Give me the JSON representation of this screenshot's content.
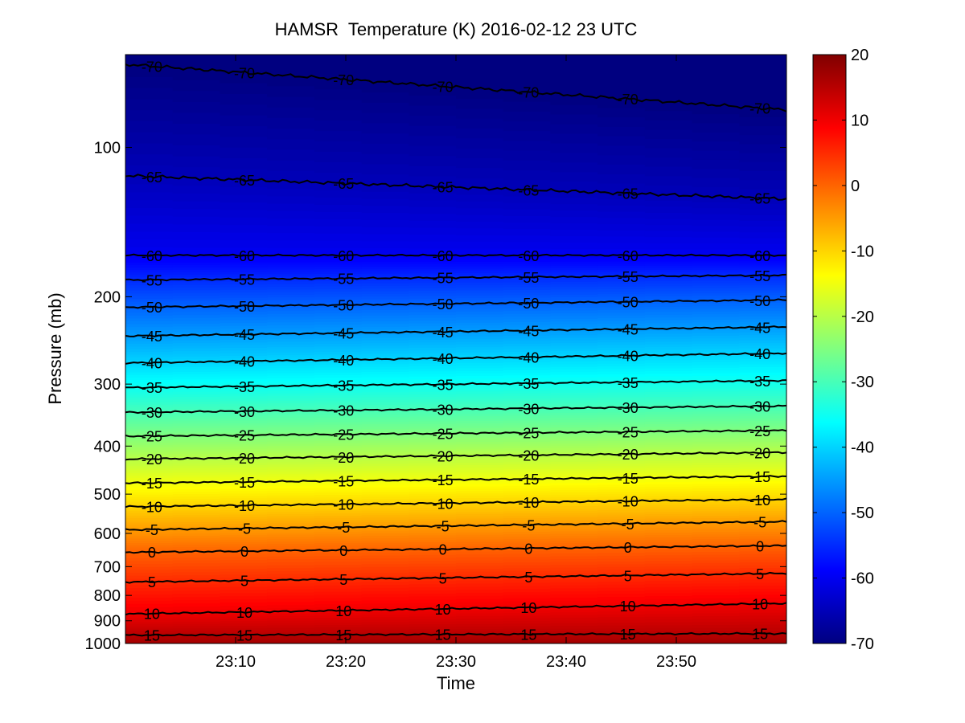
{
  "chart_data": {
    "type": "heatmap",
    "title": "HAMSR  Temperature (K) 2016-02-12 23 UTC",
    "xlabel": "Time",
    "ylabel": "Pressure (mb)",
    "x_range": [
      "23:00",
      "24:00"
    ],
    "x_ticks": [
      "23:10",
      "23:20",
      "23:30",
      "23:40",
      "23:50"
    ],
    "y_scale": "log",
    "y_reversed": true,
    "y_range": [
      65,
      1000
    ],
    "y_ticks": [
      100,
      200,
      300,
      400,
      500,
      600,
      700,
      800,
      900,
      1000
    ],
    "colormap": "jet",
    "colorbar": {
      "range": [
        -70,
        20
      ],
      "ticks": [
        20,
        10,
        0,
        -10,
        -20,
        -30,
        -40,
        -50,
        -60,
        -70
      ]
    },
    "contour_levels": [
      -70,
      -65,
      -60,
      -55,
      -50,
      -45,
      -40,
      -35,
      -30,
      -25,
      -20,
      -15,
      -10,
      -5,
      0,
      5,
      10,
      15
    ],
    "contours": [
      {
        "level": -70,
        "pressure_start": 68,
        "pressure_end": 84,
        "labels": [
          "-70",
          "-70",
          "-70",
          "-70",
          "-70",
          "-70",
          "-70"
        ]
      },
      {
        "level": -65,
        "pressure_start": 114,
        "pressure_end": 127,
        "labels": [
          "-65",
          "-65",
          "-65",
          "-65",
          "-65",
          "-65",
          "-65"
        ]
      },
      {
        "level": -60,
        "pressure_start": 165,
        "pressure_end": 165,
        "labels": [
          "-60",
          "-60",
          "-60",
          "-60",
          "-60",
          "-60",
          "-60"
        ]
      },
      {
        "level": -55,
        "pressure_start": 185,
        "pressure_end": 181,
        "labels": [
          "-55",
          "-55",
          "-55",
          "-55",
          "-55",
          "-55",
          "-55"
        ]
      },
      {
        "level": -50,
        "pressure_start": 210,
        "pressure_end": 203,
        "labels": [
          "-50",
          "-50",
          "-50",
          "-50",
          "-50",
          "-50",
          "-50"
        ]
      },
      {
        "level": -45,
        "pressure_start": 240,
        "pressure_end": 230,
        "labels": [
          "-45",
          "-45",
          "-45",
          "-45",
          "-45",
          "-45",
          "-45"
        ]
      },
      {
        "level": -40,
        "pressure_start": 272,
        "pressure_end": 260,
        "labels": [
          "-40",
          "-40",
          "-40",
          "-40",
          "-40",
          "-40",
          "-40"
        ]
      },
      {
        "level": -35,
        "pressure_start": 305,
        "pressure_end": 295,
        "labels": [
          "-35",
          "-35",
          "-35",
          "-35",
          "-35",
          "-35",
          "-35"
        ]
      },
      {
        "level": -30,
        "pressure_start": 342,
        "pressure_end": 332,
        "labels": [
          "-30",
          "-30",
          "-30",
          "-30",
          "-30",
          "-30",
          "-30"
        ]
      },
      {
        "level": -25,
        "pressure_start": 382,
        "pressure_end": 372,
        "labels": [
          "-25",
          "-25",
          "-25",
          "-25",
          "-25",
          "-25",
          "-25"
        ]
      },
      {
        "level": -20,
        "pressure_start": 425,
        "pressure_end": 412,
        "labels": [
          "-20",
          "-20",
          "-20",
          "-20",
          "-20",
          "-20",
          "-20"
        ]
      },
      {
        "level": -15,
        "pressure_start": 475,
        "pressure_end": 460,
        "labels": [
          "-15",
          "-15",
          "-15",
          "-15",
          "-15",
          "-15",
          "-15"
        ]
      },
      {
        "level": -10,
        "pressure_start": 530,
        "pressure_end": 512,
        "labels": [
          "-10",
          "-10",
          "-10",
          "-10",
          "-10",
          "-10",
          "-10"
        ]
      },
      {
        "level": -5,
        "pressure_start": 590,
        "pressure_end": 568,
        "labels": [
          "-5",
          "-5",
          "-5",
          "-5",
          "-5",
          "-5",
          "-5"
        ]
      },
      {
        "level": 0,
        "pressure_start": 655,
        "pressure_end": 635,
        "labels": [
          "0",
          "0",
          "0",
          "0",
          "0",
          "0",
          "0"
        ]
      },
      {
        "level": 5,
        "pressure_start": 752,
        "pressure_end": 722,
        "labels": [
          "5",
          "5",
          "5",
          "5",
          "5",
          "5",
          "5"
        ]
      },
      {
        "level": 10,
        "pressure_start": 872,
        "pressure_end": 830,
        "labels": [
          "10",
          "10",
          "10",
          "10",
          "10",
          "10",
          "10"
        ]
      },
      {
        "level": 15,
        "pressure_start": 962,
        "pressure_end": 955,
        "labels": [
          "15",
          "15",
          "15",
          "15",
          "15",
          "15",
          "15"
        ]
      }
    ]
  }
}
